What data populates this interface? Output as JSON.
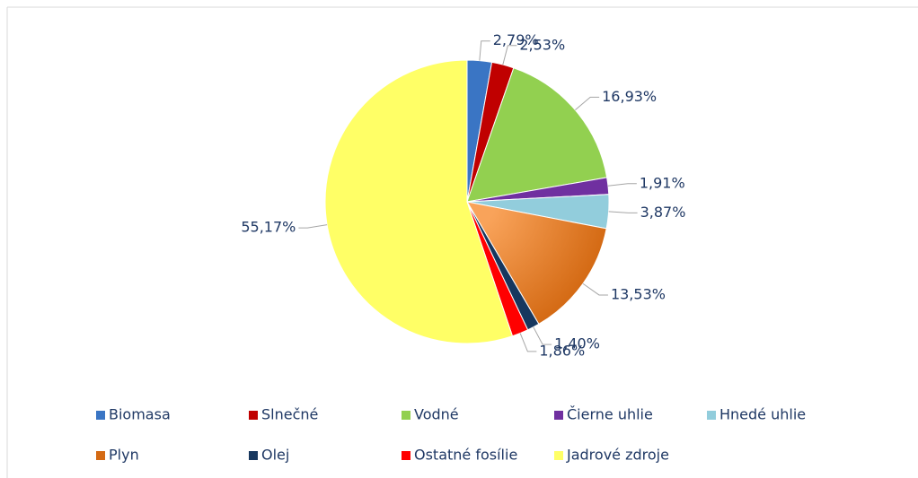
{
  "chart_data": {
    "type": "pie",
    "categories": [
      "Biomasa",
      "Slnečné",
      "Vodné",
      "Čierne uhlie",
      "Hnedé uhlie",
      "Plyn",
      "Olej",
      "Ostatné fosílie",
      "Jadrové zdroje"
    ],
    "values": [
      2.79,
      2.53,
      16.93,
      1.91,
      3.87,
      13.53,
      1.4,
      1.86,
      55.17
    ],
    "value_labels": [
      "2,79%",
      "2,53%",
      "16,93%",
      "1,91%",
      "3,87%",
      "13,53%",
      "1,40%",
      "1,86%",
      "55,17%"
    ],
    "colors": [
      "#3a75c4",
      "#c00000",
      "#92d050",
      "#7030a0",
      "#92cddc",
      "#f79646",
      "#17375e",
      "#ff0000",
      "#ffff66"
    ],
    "legend": "bottom"
  }
}
